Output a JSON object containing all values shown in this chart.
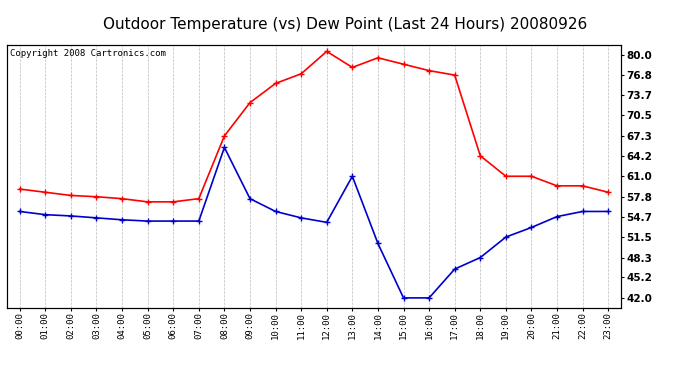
{
  "title": "Outdoor Temperature (vs) Dew Point (Last 24 Hours) 20080926",
  "copyright": "Copyright 2008 Cartronics.com",
  "x_labels": [
    "00:00",
    "01:00",
    "02:00",
    "03:00",
    "04:00",
    "05:00",
    "06:00",
    "07:00",
    "08:00",
    "09:00",
    "10:00",
    "11:00",
    "12:00",
    "13:00",
    "14:00",
    "15:00",
    "16:00",
    "17:00",
    "18:00",
    "19:00",
    "20:00",
    "21:00",
    "22:00",
    "23:00"
  ],
  "temp_data": [
    59.0,
    58.5,
    58.0,
    57.8,
    57.5,
    57.0,
    57.0,
    57.5,
    67.3,
    72.5,
    75.5,
    77.0,
    80.5,
    78.0,
    79.5,
    78.5,
    77.5,
    76.8,
    64.2,
    61.0,
    61.0,
    59.5,
    59.5,
    58.5
  ],
  "dew_data": [
    55.5,
    55.0,
    54.8,
    54.5,
    54.2,
    54.0,
    54.0,
    54.0,
    65.5,
    57.5,
    55.5,
    54.5,
    53.8,
    61.0,
    50.5,
    42.0,
    42.0,
    46.5,
    48.3,
    51.5,
    53.0,
    54.7,
    55.5,
    55.5
  ],
  "temp_color": "#ff0000",
  "dew_color": "#0000cc",
  "bg_color": "#ffffff",
  "plot_bg_color": "#ffffff",
  "grid_color": "#bbbbbb",
  "yticks": [
    42.0,
    45.2,
    48.3,
    51.5,
    54.7,
    57.8,
    61.0,
    64.2,
    67.3,
    70.5,
    73.7,
    76.8,
    80.0
  ],
  "ylim": [
    40.5,
    81.5
  ],
  "title_fontsize": 11,
  "copyright_fontsize": 6.5,
  "marker": "+",
  "marker_size": 4,
  "linewidth": 1.2
}
